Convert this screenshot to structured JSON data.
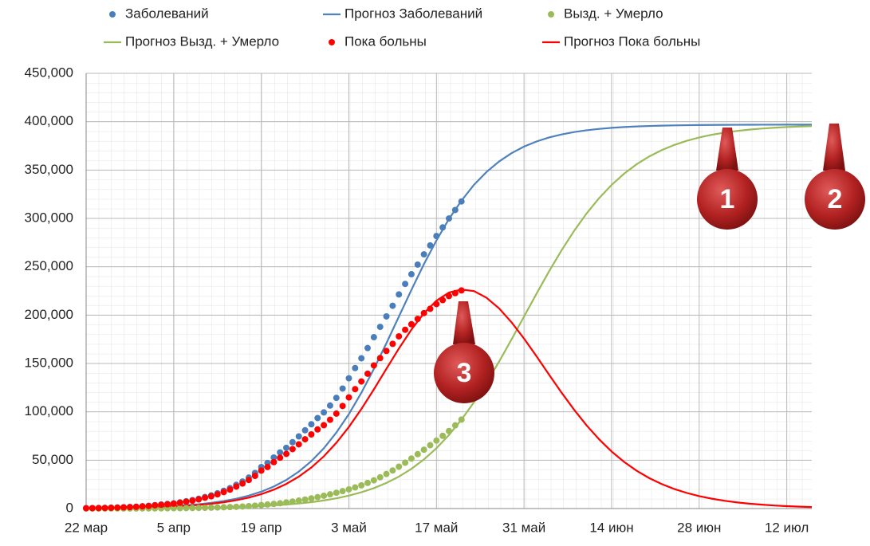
{
  "chart_data": {
    "type": "line",
    "xlim": [
      0,
      116
    ],
    "ylim": [
      0,
      450000
    ],
    "xticks": [
      {
        "value": 0,
        "label": "22 мар"
      },
      {
        "value": 14,
        "label": "5 апр"
      },
      {
        "value": 28,
        "label": "19 апр"
      },
      {
        "value": 42,
        "label": "3 май"
      },
      {
        "value": 56,
        "label": "17 май"
      },
      {
        "value": 70,
        "label": "31 май"
      },
      {
        "value": 84,
        "label": "14 июн"
      },
      {
        "value": 98,
        "label": "28 июн"
      },
      {
        "value": 112,
        "label": "12 июл"
      }
    ],
    "yticks": [
      0,
      {
        "value": 50000,
        "label": "50,000"
      },
      {
        "value": 100000,
        "label": "100,000"
      },
      {
        "value": 150000,
        "label": "150,000"
      },
      {
        "value": 200000,
        "label": "200,000"
      },
      {
        "value": 250000,
        "label": "250,000"
      },
      {
        "value": 300000,
        "label": "300,000"
      },
      {
        "value": 350000,
        "label": "350,000"
      },
      {
        "value": 400000,
        "label": "400,000"
      },
      {
        "value": 450000,
        "label": "450,000"
      }
    ],
    "grid": true,
    "annotations": [
      "1",
      "2",
      "3"
    ],
    "series": [
      {
        "name": "Заболеваний",
        "color": "#4a7ebb",
        "mode": "markers",
        "x": [
          0,
          1,
          2,
          3,
          4,
          5,
          6,
          7,
          8,
          9,
          10,
          11,
          12,
          13,
          14,
          15,
          16,
          17,
          18,
          19,
          20,
          21,
          22,
          23,
          24,
          25,
          26,
          27,
          28,
          29,
          30,
          31,
          32,
          33,
          34,
          35,
          36,
          37,
          38,
          39,
          40,
          41,
          42,
          43,
          44,
          45,
          46,
          47,
          48,
          49,
          50,
          51,
          52,
          53,
          54,
          55,
          56,
          57,
          58,
          59,
          60
        ],
        "values": [
          367,
          438,
          495,
          658,
          840,
          1036,
          1264,
          1534,
          1836,
          2337,
          2777,
          3548,
          4149,
          4731,
          5389,
          6343,
          7497,
          8672,
          10131,
          11917,
          13584,
          15770,
          18328,
          21102,
          24490,
          27938,
          32008,
          36793,
          42853,
          47121,
          52763,
          57999,
          62773,
          68622,
          74588,
          80949,
          87147,
          93558,
          99399,
          106498,
          114431,
          124054,
          134687,
          145268,
          155370,
          165929,
          177160,
          187859,
          198676,
          209688,
          221344,
          232243,
          242271,
          252245,
          262843,
          272043,
          281752,
          290678,
          299941,
          308705,
          317554
        ]
      },
      {
        "name": "Прогноз Заболеваний",
        "color": "#4f81bd",
        "mode": "lines",
        "x": [
          0,
          2,
          4,
          6,
          8,
          10,
          12,
          14,
          16,
          18,
          20,
          22,
          24,
          26,
          28,
          30,
          32,
          34,
          36,
          38,
          40,
          42,
          44,
          46,
          48,
          50,
          52,
          54,
          56,
          58,
          60,
          62,
          64,
          66,
          68,
          70,
          72,
          74,
          76,
          78,
          80,
          82,
          84,
          86,
          88,
          90,
          92,
          94,
          96,
          98,
          100,
          102,
          104,
          106,
          108,
          110,
          112,
          114,
          116
        ],
        "values": [
          362,
          478,
          633,
          837,
          1106,
          1463,
          1933,
          2553,
          3373,
          4451,
          5866,
          7724,
          10154,
          13322,
          17442,
          22763,
          29561,
          38210,
          49012,
          62323,
          78536,
          97663,
          119722,
          144311,
          170900,
          198500,
          226082,
          252705,
          277235,
          299397,
          318364,
          334738,
          347940,
          358791,
          367424,
          374245,
          379541,
          383685,
          386827,
          389292,
          391133,
          392564,
          393627,
          394448,
          395068,
          395537,
          395895,
          396164,
          396366,
          396520,
          396639,
          396727,
          396794,
          396844,
          396882,
          396911,
          396933,
          396949,
          396962
        ]
      },
      {
        "name": "Вызд. + Умерло",
        "color": "#9bbb59",
        "mode": "markers",
        "x": [
          0,
          1,
          2,
          3,
          4,
          5,
          6,
          7,
          8,
          9,
          10,
          11,
          12,
          13,
          14,
          15,
          16,
          17,
          18,
          19,
          20,
          21,
          22,
          23,
          24,
          25,
          26,
          27,
          28,
          29,
          30,
          31,
          32,
          33,
          34,
          35,
          36,
          37,
          38,
          39,
          40,
          41,
          42,
          43,
          44,
          45,
          46,
          47,
          48,
          49,
          50,
          51,
          52,
          53,
          54,
          55,
          56,
          57,
          58,
          59,
          60
        ],
        "values": [
          20,
          25,
          30,
          40,
          50,
          60,
          70,
          80,
          100,
          120,
          150,
          200,
          250,
          300,
          350,
          400,
          450,
          550,
          650,
          750,
          900,
          1100,
          1300,
          1550,
          1800,
          2100,
          2500,
          3000,
          3600,
          4200,
          4800,
          5500,
          6300,
          7200,
          8200,
          9300,
          10500,
          11800,
          13200,
          14700,
          16300,
          18000,
          19800,
          21800,
          24000,
          26500,
          29200,
          32300,
          35700,
          39400,
          43300,
          47400,
          51700,
          56200,
          60800,
          65500,
          70300,
          75200,
          80200,
          86000,
          92000
        ]
      },
      {
        "name": "Прогноз Вызд. + Умерло",
        "color": "#9bbb59",
        "mode": "lines",
        "x": [
          0,
          2,
          4,
          6,
          8,
          10,
          12,
          14,
          16,
          18,
          20,
          22,
          24,
          26,
          28,
          30,
          32,
          34,
          36,
          38,
          40,
          42,
          44,
          46,
          48,
          50,
          52,
          54,
          56,
          58,
          60,
          62,
          64,
          66,
          68,
          70,
          72,
          74,
          76,
          78,
          80,
          82,
          84,
          86,
          88,
          90,
          92,
          94,
          96,
          98,
          100,
          102,
          104,
          106,
          108,
          110,
          112,
          114,
          116
        ],
        "values": [
          89,
          113,
          144,
          183,
          233,
          296,
          376,
          478,
          608,
          772,
          982,
          1247,
          1584,
          2011,
          2553,
          3241,
          4110,
          5210,
          6606,
          8358,
          10559,
          13322,
          16822,
          21090,
          26449,
          33028,
          41055,
          50767,
          62363,
          76054,
          91898,
          109911,
          129993,
          151758,
          174813,
          198500,
          222160,
          245213,
          266981,
          287057,
          305150,
          320938,
          334623,
          346243,
          355966,
          363990,
          370541,
          375909,
          380195,
          383686,
          386450,
          388647,
          390402,
          391789,
          392875,
          393760,
          394448,
          394989,
          395418
        ]
      },
      {
        "name": "Пока больны",
        "color": "#ff0000",
        "mode": "markers",
        "x": [
          0,
          1,
          2,
          3,
          4,
          5,
          6,
          7,
          8,
          9,
          10,
          11,
          12,
          13,
          14,
          15,
          16,
          17,
          18,
          19,
          20,
          21,
          22,
          23,
          24,
          25,
          26,
          27,
          28,
          29,
          30,
          31,
          32,
          33,
          34,
          35,
          36,
          37,
          38,
          39,
          40,
          41,
          42,
          43,
          44,
          45,
          46,
          47,
          48,
          49,
          50,
          51,
          52,
          53,
          54,
          55,
          56,
          57,
          58,
          59,
          60
        ],
        "values": [
          347,
          413,
          465,
          618,
          790,
          976,
          1194,
          1454,
          1736,
          2217,
          2627,
          3348,
          3899,
          4431,
          5039,
          5943,
          7047,
          8122,
          9481,
          11167,
          12684,
          14670,
          17028,
          19552,
          22690,
          25838,
          29508,
          33793,
          39253,
          42921,
          47963,
          52499,
          56473,
          61422,
          66388,
          71649,
          76647,
          81758,
          86199,
          91798,
          98131,
          106054,
          114887,
          123468,
          131370,
          139429,
          147960,
          155559,
          162976,
          170288,
          178044,
          184843,
          190571,
          196045,
          202043,
          206543,
          211452,
          215478,
          219741,
          222705,
          225554
        ]
      },
      {
        "name": "Прогноз Пока больны",
        "color": "#ff0000",
        "mode": "lines",
        "x": [
          0,
          2,
          4,
          6,
          8,
          10,
          12,
          14,
          16,
          18,
          20,
          22,
          24,
          26,
          28,
          30,
          32,
          34,
          36,
          38,
          40,
          42,
          44,
          46,
          48,
          50,
          52,
          54,
          56,
          58,
          60,
          62,
          64,
          66,
          68,
          70,
          72,
          74,
          76,
          78,
          80,
          82,
          84,
          86,
          88,
          90,
          92,
          94,
          96,
          98,
          100,
          102,
          104,
          106,
          108,
          110,
          112,
          114,
          116
        ],
        "values": [
          273,
          365,
          489,
          654,
          873,
          1167,
          1557,
          2075,
          2765,
          3679,
          4884,
          6477,
          8570,
          11311,
          14889,
          19522,
          25451,
          33000,
          42406,
          53965,
          67977,
          84341,
          102900,
          123221,
          144451,
          165472,
          185027,
          201938,
          214872,
          223343,
          226466,
          224827,
          217947,
          207033,
          192611,
          175745,
          157381,
          138472,
          119846,
          102235,
          85983,
          71626,
          59004,
          48205,
          39102,
          31547,
          25354,
          20255,
          16171,
          12834,
          10189,
          8080,
          6392,
          5055,
          4007,
          3151,
          2485,
          1960,
          1544
        ]
      }
    ]
  }
}
